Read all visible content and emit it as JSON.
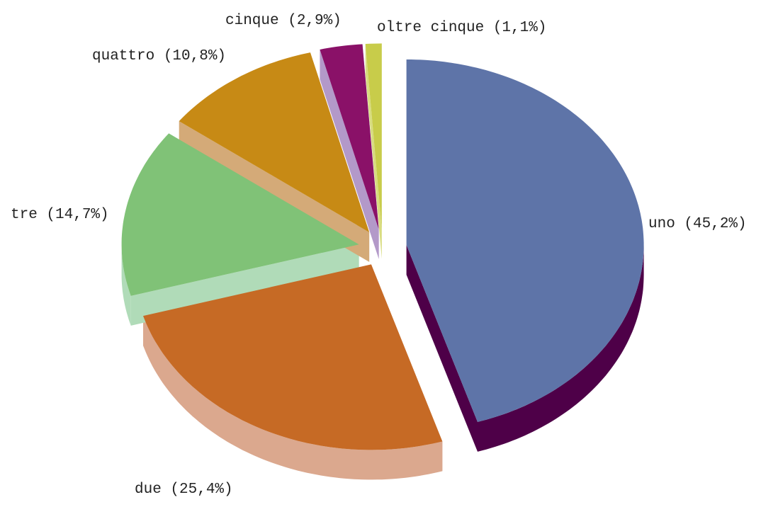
{
  "chart_data": {
    "type": "pie3d",
    "categories": [
      "uno",
      "due",
      "tre",
      "quattro",
      "cinque",
      "oltre cinque"
    ],
    "values": [
      45.2,
      25.4,
      14.7,
      10.8,
      2.9,
      1.1
    ],
    "value_labels": [
      "(45,2%)",
      "(25,4%)",
      "(14,7%)",
      "(10,8%)",
      "(2,9%)",
      "(1,1%)"
    ],
    "colors": [
      "#5e74a8",
      "#c66a25",
      "#80c277",
      "#c78a15",
      "#8a1168",
      "#c8cc4a"
    ],
    "side_colors": [
      "#4e0048",
      "#dba88e",
      "#b0dbb8",
      "#d4aa78",
      "#b399c9",
      "#d8dc80"
    ],
    "exploded": true
  }
}
